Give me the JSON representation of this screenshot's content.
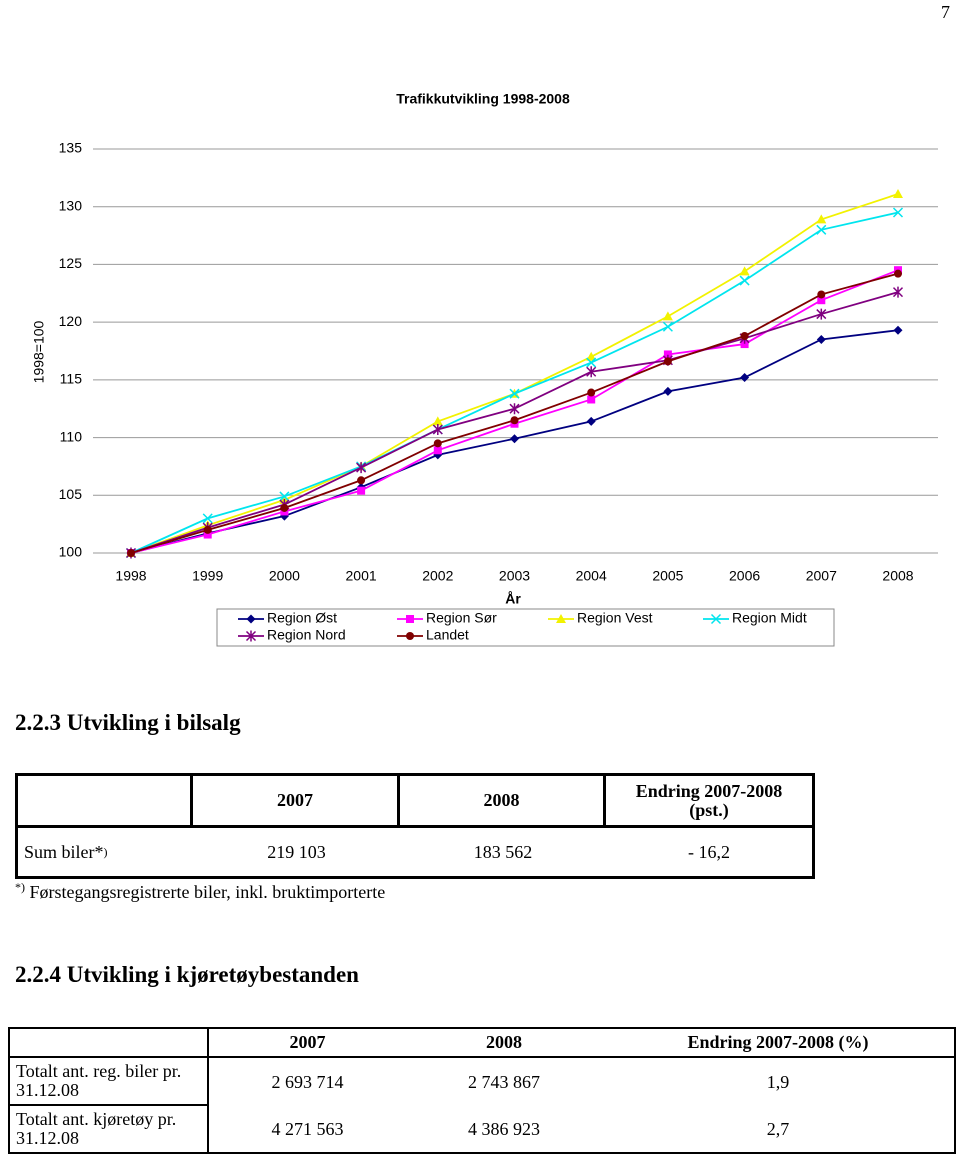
{
  "page_number": "7",
  "chart_data": {
    "type": "line",
    "title": "Trafikkutvikling 1998-2008",
    "y_label": "1998=100",
    "x_label": "År",
    "categories": [
      "1998",
      "1999",
      "2000",
      "2001",
      "2002",
      "2003",
      "2004",
      "2005",
      "2006",
      "2007",
      "2008"
    ],
    "ylim": [
      100,
      135
    ],
    "yticks": [
      100,
      105,
      110,
      115,
      120,
      125,
      130,
      135
    ],
    "grid": true,
    "series": [
      {
        "name": "Region Øst",
        "color": "#000080",
        "marker": "diamond",
        "values": [
          100,
          101.7,
          103.2,
          105.7,
          108.5,
          109.9,
          111.4,
          114.0,
          115.2,
          118.5,
          119.3
        ]
      },
      {
        "name": "Region Sør",
        "color": "#ff00ff",
        "marker": "square",
        "values": [
          100,
          101.6,
          103.6,
          105.4,
          108.9,
          111.2,
          113.3,
          117.2,
          118.1,
          121.9,
          124.5
        ]
      },
      {
        "name": "Region Vest",
        "color": "#f2f200",
        "marker": "triangle",
        "values": [
          100,
          102.4,
          104.6,
          107.5,
          111.4,
          113.8,
          117.0,
          120.5,
          124.4,
          128.9,
          131.1
        ]
      },
      {
        "name": "Region Midt",
        "color": "#00e5ee",
        "marker": "cross",
        "values": [
          100,
          103.0,
          104.9,
          107.5,
          110.7,
          113.8,
          116.5,
          119.6,
          123.6,
          128.0,
          129.5
        ]
      },
      {
        "name": "Region Nord",
        "color": "#800080",
        "marker": "star",
        "values": [
          100,
          102.2,
          104.2,
          107.4,
          110.7,
          112.5,
          115.7,
          116.7,
          118.6,
          120.7,
          122.6
        ]
      },
      {
        "name": "Landet",
        "color": "#800000",
        "marker": "circle",
        "values": [
          100,
          102.0,
          103.9,
          106.3,
          109.5,
          111.5,
          113.9,
          116.6,
          118.8,
          122.4,
          124.2
        ]
      }
    ]
  },
  "section_1": {
    "heading": "2.2.3 Utvikling i bilsalg",
    "table": {
      "header": [
        "2007",
        "2008",
        "Endring 2007-2008 (pst.)"
      ],
      "rows": [
        {
          "label": "Sum biler*",
          "label_sup": ")",
          "cells": [
            "219 103",
            "183 562",
            "- 16,2"
          ]
        }
      ]
    },
    "footnote": {
      "mark": "*)",
      "text": "Førstegangsregistrerte biler, inkl. bruktimporterte"
    }
  },
  "section_2": {
    "heading": "2.2.4 Utvikling i kjøretøybestanden",
    "table": {
      "header": [
        "2007",
        "2008",
        "Endring 2007-2008 (%)"
      ],
      "rows": [
        {
          "label": "Totalt ant. reg. biler pr. 31.12.08",
          "cells": [
            "2 693 714",
            "2 743 867",
            "1,9"
          ]
        },
        {
          "label": "Totalt ant. kjøretøy pr. 31.12.08",
          "cells": [
            "4 271 563",
            "4 386 923",
            "2,7"
          ]
        }
      ]
    }
  }
}
